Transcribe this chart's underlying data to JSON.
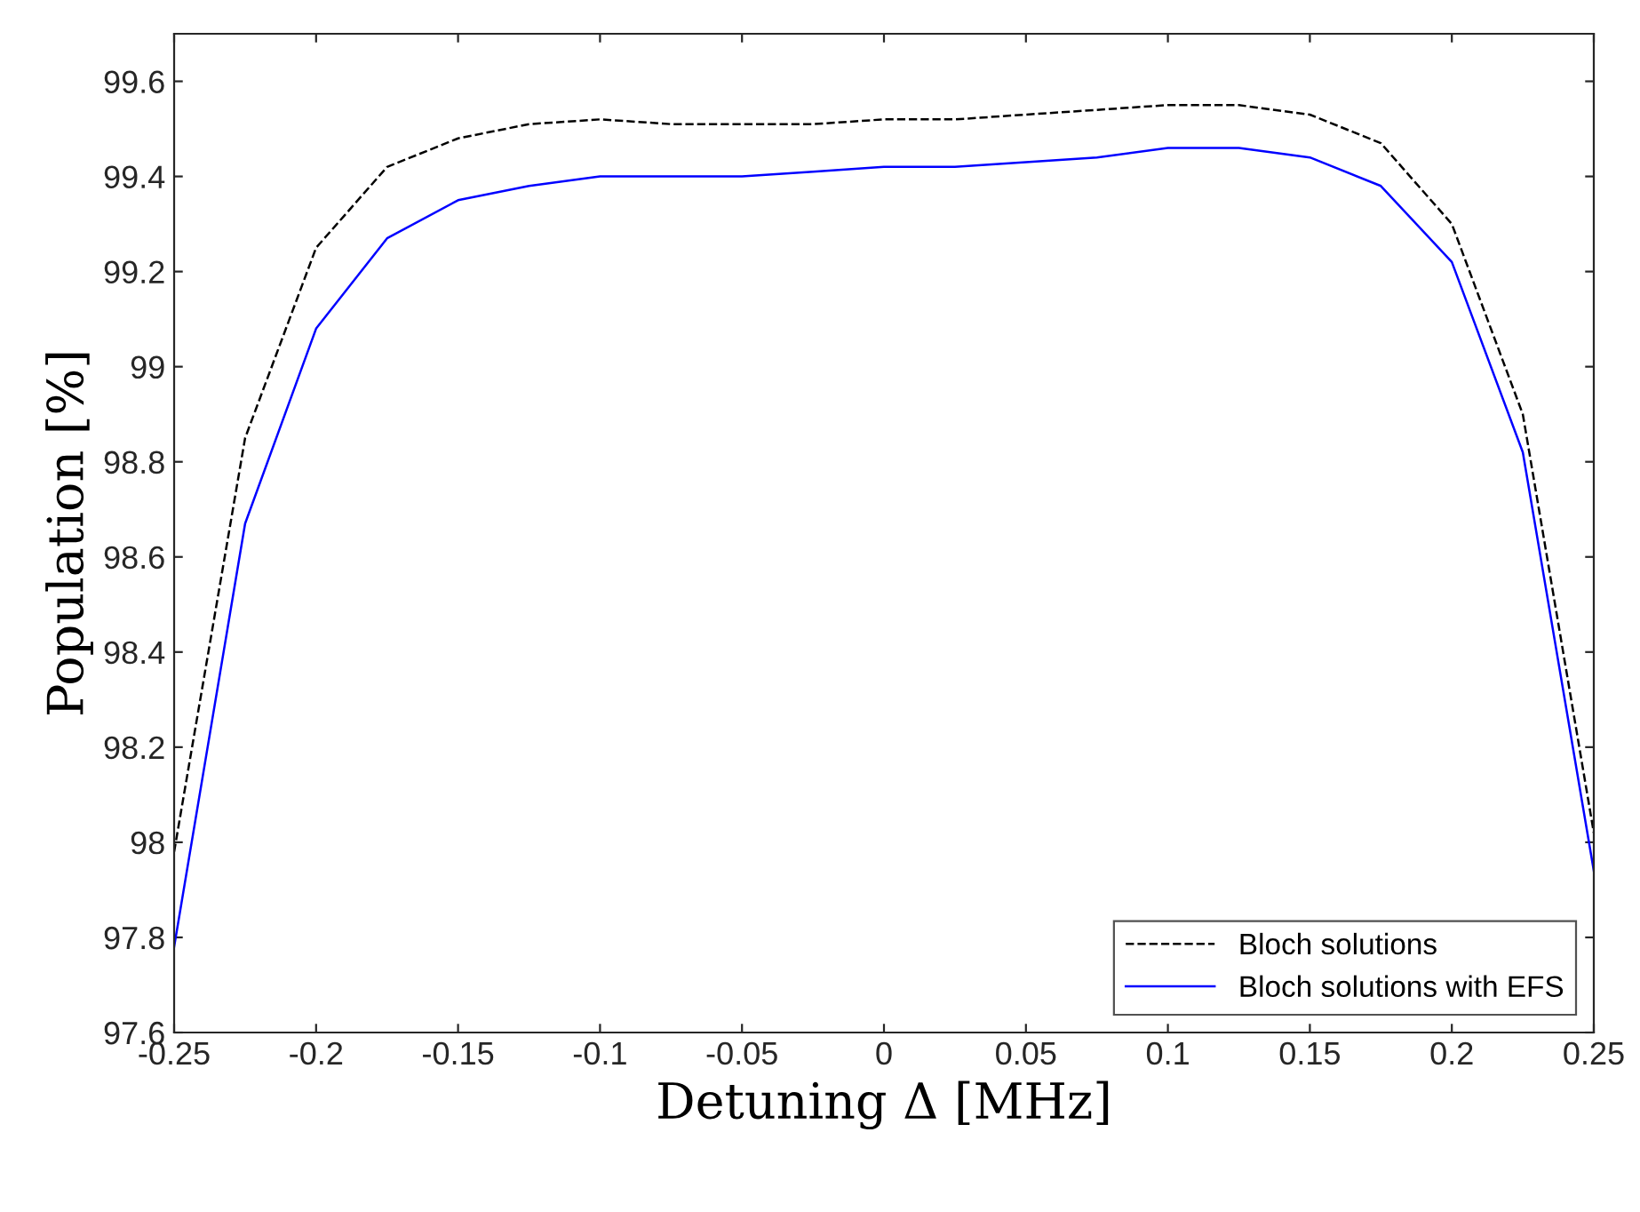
{
  "chart_data": {
    "type": "line",
    "xlabel": "Detuning Δ [MHz]",
    "ylabel": "Population [%]",
    "x": [
      -0.25,
      -0.225,
      -0.2,
      -0.175,
      -0.15,
      -0.125,
      -0.1,
      -0.075,
      -0.05,
      -0.025,
      0,
      0.025,
      0.05,
      0.075,
      0.1,
      0.125,
      0.15,
      0.175,
      0.2,
      0.225,
      0.25
    ],
    "series": [
      {
        "name": "Bloch solutions",
        "color": "#000000",
        "line_style": "dashed",
        "values": [
          97.98,
          98.85,
          99.25,
          99.42,
          99.48,
          99.51,
          99.52,
          99.51,
          99.51,
          99.51,
          99.52,
          99.52,
          99.53,
          99.54,
          99.55,
          99.55,
          99.53,
          99.47,
          99.3,
          98.9,
          98.02
        ]
      },
      {
        "name": "Bloch solutions with EFS",
        "color": "#0000ff",
        "line_style": "solid",
        "values": [
          97.78,
          98.67,
          99.08,
          99.27,
          99.35,
          99.38,
          99.4,
          99.4,
          99.4,
          99.41,
          99.42,
          99.42,
          99.43,
          99.44,
          99.46,
          99.46,
          99.44,
          99.38,
          99.22,
          98.82,
          97.94
        ]
      }
    ],
    "xlim": [
      -0.25,
      0.25
    ],
    "xticks": [
      -0.25,
      -0.2,
      -0.15,
      -0.1,
      -0.05,
      0,
      0.05,
      0.1,
      0.15,
      0.2,
      0.25
    ],
    "ylim": [
      97.6,
      99.7
    ],
    "yticks": [
      97.6,
      97.8,
      98,
      98.2,
      98.4,
      98.6,
      98.8,
      99,
      99.2,
      99.4,
      99.6
    ],
    "grid": false,
    "legend": "bottom right"
  }
}
